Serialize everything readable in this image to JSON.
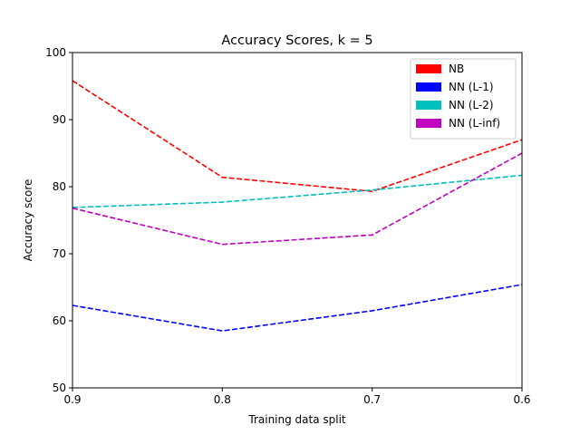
{
  "chart_data": {
    "type": "line",
    "title": "Accuracy Scores, k = 5",
    "xlabel": "Training data split",
    "ylabel": "Accuracy score",
    "x": [
      0.9,
      0.8,
      0.7,
      0.6
    ],
    "x_tick_labels": [
      "0.9",
      "0.8",
      "0.7",
      "0.6"
    ],
    "xlim": [
      0.9,
      0.6
    ],
    "ylim": [
      50,
      100
    ],
    "y_ticks": [
      50,
      60,
      70,
      80,
      90,
      100
    ],
    "y_tick_labels": [
      "50",
      "60",
      "70",
      "80",
      "90",
      "100"
    ],
    "line_style": "dashed",
    "grid": false,
    "legend_position": "top-right",
    "series": [
      {
        "name": "NB",
        "color": "#ff0000",
        "values": [
          95.8,
          81.4,
          79.3,
          87.0
        ]
      },
      {
        "name": "NN (L-1)",
        "color": "#0000ff",
        "values": [
          62.3,
          58.5,
          61.5,
          65.4
        ]
      },
      {
        "name": "NN (L-2)",
        "color": "#00bfbf",
        "values": [
          76.9,
          77.7,
          79.5,
          81.7
        ]
      },
      {
        "name": "NN (L-inf)",
        "color": "#bf00bf",
        "values": [
          76.8,
          71.4,
          72.8,
          85.0
        ]
      }
    ]
  }
}
